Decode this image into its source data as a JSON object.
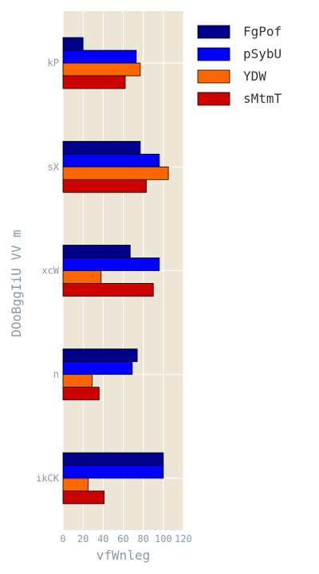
{
  "chart_data": {
    "type": "bar",
    "orientation": "horizontal",
    "categories": [
      "kP",
      "sX",
      "xcW",
      "n",
      "ikCK"
    ],
    "series": [
      {
        "name": "FgPof",
        "color": "#00008b",
        "values": [
          20,
          77,
          67,
          74,
          100
        ]
      },
      {
        "name": "pSybU",
        "color": "#0000ff",
        "values": [
          73,
          96,
          96,
          69,
          100
        ]
      },
      {
        "name": "YDW",
        "color": "#ff6600",
        "values": [
          77,
          105,
          38,
          29,
          25
        ]
      },
      {
        "name": "sMtmT",
        "color": "#cc0000",
        "values": [
          62,
          83,
          90,
          36,
          41
        ]
      }
    ],
    "xlabel": "vfWnleg",
    "ylabel": "DOoBggIiU VV m",
    "xlim": [
      0,
      120
    ],
    "xticks": [
      "0",
      "20",
      "40",
      "60",
      "80",
      "100",
      "120"
    ],
    "grid": true,
    "legend_position": "right",
    "plot_background": "#ede6d6"
  }
}
